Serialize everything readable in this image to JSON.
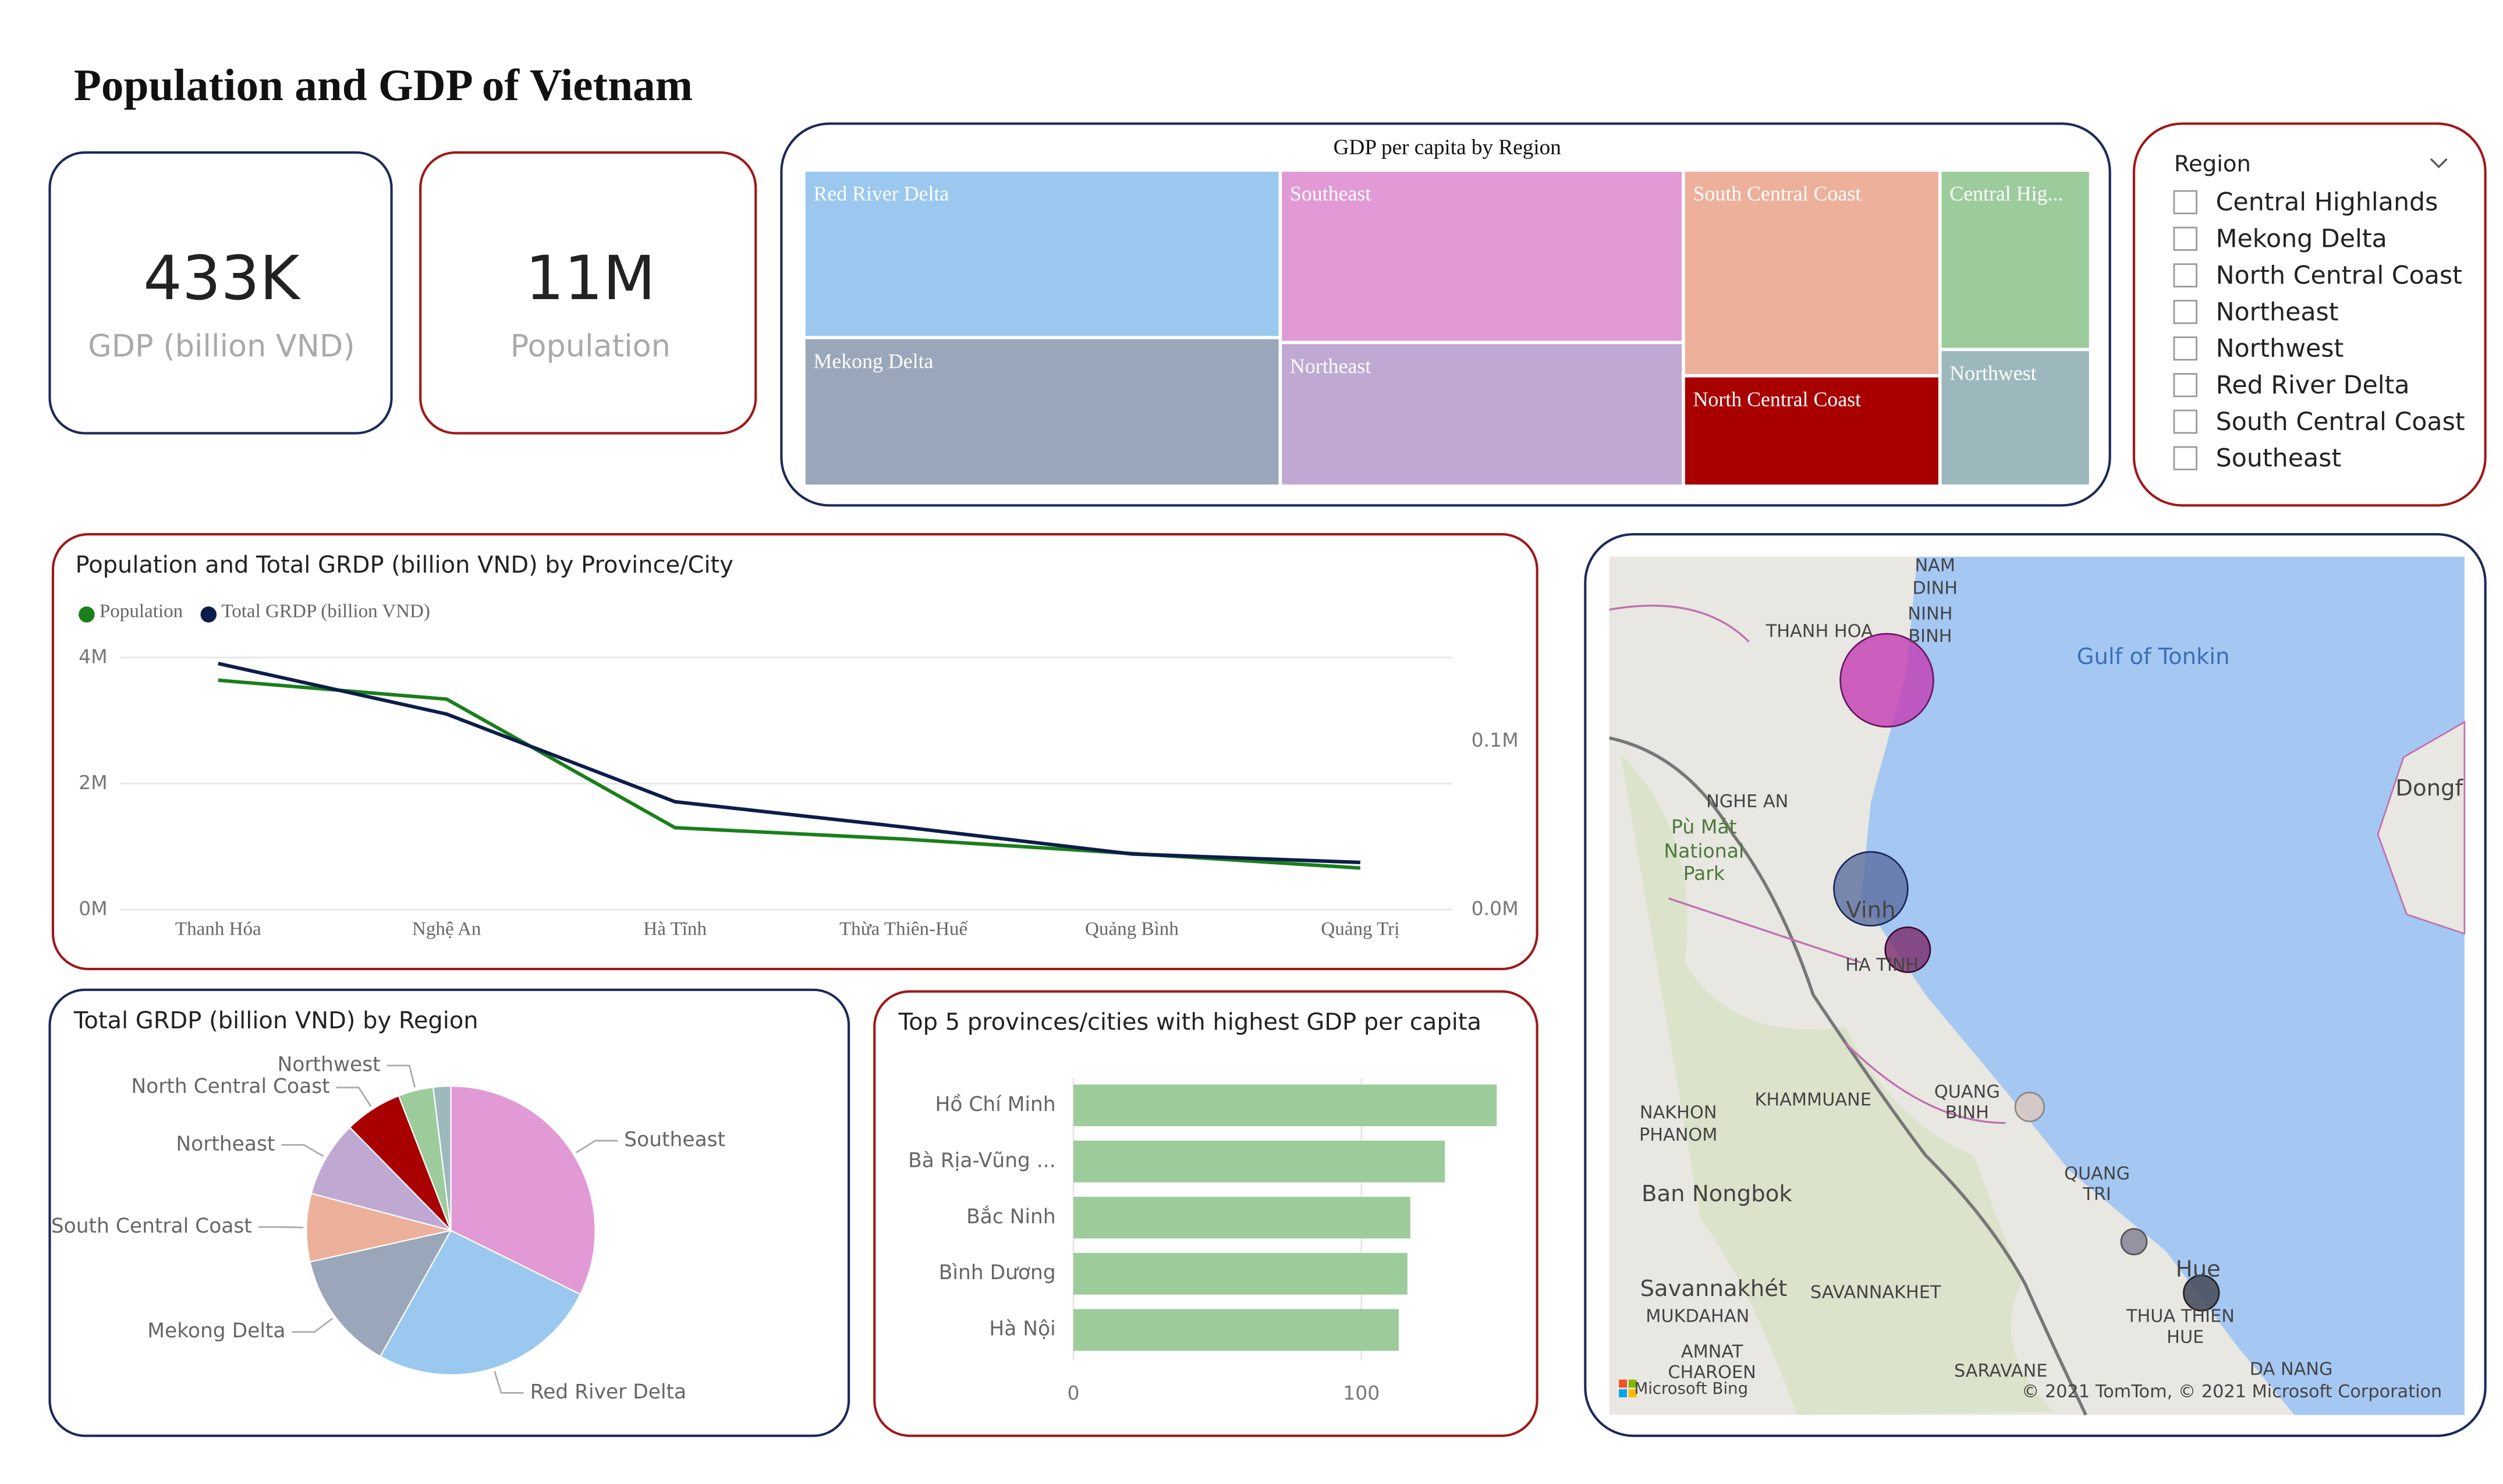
{
  "title": "Population and GDP of Vietnam",
  "cards": [
    {
      "value": "433K",
      "label": "GDP (billion VND)"
    },
    {
      "value": "11M",
      "label": "Population"
    }
  ],
  "treemap": {
    "type": "treemap",
    "title": "GDP per capita by Region",
    "categories": [
      "Red River Delta",
      "Mekong Delta",
      "Southeast",
      "Northeast",
      "South Central Coast",
      "North Central Coast",
      "Central Hig...",
      "Northwest"
    ],
    "values": [
      31,
      27.5,
      27,
      22.5,
      20.5,
      11,
      10.5,
      8
    ],
    "colors": [
      "#9ac8ee",
      "#9aa6ba",
      "#e19ad6",
      "#bfa9d3",
      "#edb09a",
      "#a80000",
      "#9dcc9c",
      "#9db8bd"
    ]
  },
  "slicer": {
    "title": "Region",
    "items": [
      "Central Highlands",
      "Mekong Delta",
      "North Central Coast",
      "Northeast",
      "Northwest",
      "Red River Delta",
      "South Central Coast",
      "Southeast"
    ]
  },
  "line_chart": {
    "type": "line",
    "title": "Population and Total GRDP (billion VND) by Province/City",
    "categories": [
      "Thanh Hóa",
      "Nghệ An",
      "Hà Tĩnh",
      "Thừa Thiên-Huế",
      "Quảng Bình",
      "Quảng Trị"
    ],
    "series": [
      {
        "name": "Population",
        "color": "#1a7f1a",
        "values": [
          3640000,
          3340000,
          1300000,
          1120000,
          890000,
          660000
        ]
      },
      {
        "name": "Total GRDP (billion VND)",
        "color": "#0d1d4a",
        "axis": "y2",
        "values": [
          146000,
          116000,
          64000,
          49000,
          33000,
          28000
        ]
      }
    ],
    "ylim": [
      0,
      4200000
    ],
    "yticks": [
      {
        "value": 0,
        "label": "0M"
      },
      {
        "value": 2000000,
        "label": "2M"
      },
      {
        "value": 4000000,
        "label": "4M"
      }
    ],
    "y2lim": [
      0,
      157000
    ],
    "y2ticks": [
      {
        "value": 0,
        "label": "0.0M"
      },
      {
        "value": 100000,
        "label": "0.1M"
      }
    ],
    "grid": true
  },
  "pie_chart": {
    "type": "pie",
    "title": "Total GRDP (billion VND) by Region",
    "categories": [
      "Southeast",
      "Red River Delta",
      "Mekong Delta",
      "South Central Coast",
      "Northeast",
      "North Central Coast",
      "Northwest",
      null
    ],
    "values": [
      1400000,
      1120000,
      580000,
      330000,
      370000,
      280000,
      170000,
      85000
    ],
    "colors": [
      "#e19ad6",
      "#9ac8ee",
      "#9aa6ba",
      "#edb09a",
      "#bfa9d3",
      "#a80000",
      "#9dcc9c",
      "#9db8bd"
    ]
  },
  "bar_chart": {
    "type": "hbar",
    "title": "Top 5 provinces/cities with highest GDP per capita",
    "categories": [
      "Hồ Chí Minh",
      "Bà Rịa-Vũng ...",
      "Bắc Ninh",
      "Bình Dương",
      "Hà Nội"
    ],
    "values": [
      147,
      129,
      117,
      116,
      113
    ],
    "color": "#9ccc9a",
    "xlim": [
      0,
      151
    ],
    "xticks": [
      0,
      100
    ],
    "grid": true
  },
  "map": {
    "labels": [
      "NAM",
      "DINH",
      "NINH",
      "BINH",
      "THANH HOA",
      "Gulf of Tonkin",
      "Dongf",
      "NGHE AN",
      "Pù Mát",
      "National",
      "Park",
      "Vinh",
      "HA TINH",
      "QUANG",
      "BINH",
      "NAKHON",
      "PHANOM",
      "KHAMMUANE",
      "QUANG",
      "TRI",
      "Ban Nongbok",
      "Savannakhét",
      "SAVANNAKHET",
      "MUKDAHAN",
      "AMNAT",
      "CHAROEN",
      "Hue",
      "THUA THIEN",
      "HUE",
      "SARAVANE",
      "DA NANG",
      "Microsoft Bing",
      "© 2021 TomTom, © 2021 Microsoft Corporation"
    ]
  }
}
